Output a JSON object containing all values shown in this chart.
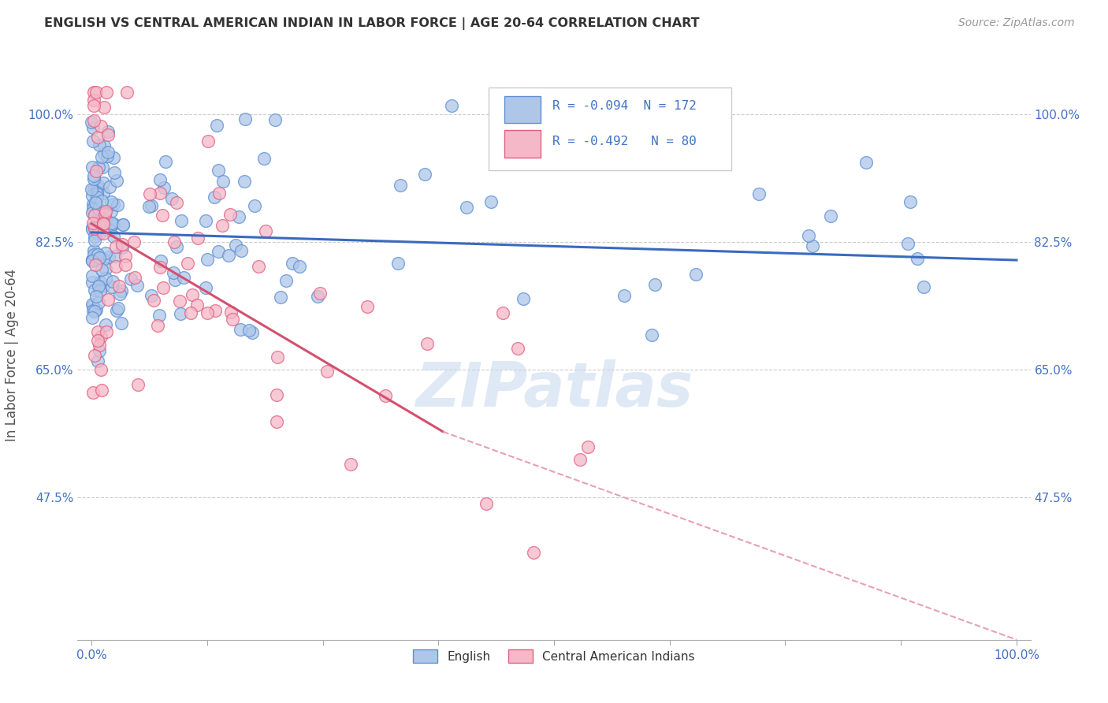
{
  "title": "ENGLISH VS CENTRAL AMERICAN INDIAN IN LABOR FORCE | AGE 20-64 CORRELATION CHART",
  "source": "Source: ZipAtlas.com",
  "ylabel": "In Labor Force | Age 20-64",
  "r_english": -0.094,
  "n_english": 172,
  "r_indian": -0.492,
  "n_indian": 80,
  "x_min": 0.0,
  "x_max": 1.0,
  "y_min": 0.28,
  "y_max": 1.06,
  "yticks": [
    0.475,
    0.65,
    0.825,
    1.0
  ],
  "ytick_labels": [
    "47.5%",
    "65.0%",
    "82.5%",
    "100.0%"
  ],
  "xtick_labels_left": "0.0%",
  "xtick_labels_right": "100.0%",
  "color_english_fill": "#aec6e8",
  "color_english_edge": "#5b8fd4",
  "color_indian_fill": "#f5b8c8",
  "color_indian_edge": "#e06080",
  "line_color_english": "#3a6abf",
  "line_color_indian": "#d45070",
  "line_color_dashed": "#e8a0b0",
  "watermark": "ZIPatlas",
  "background_color": "#ffffff",
  "grid_color": "#cccccc",
  "text_color_axis": "#4472c4",
  "text_color_title": "#333333",
  "text_color_source": "#999999",
  "legend_r_color": "#4472c4",
  "eng_trend_x0": 0.0,
  "eng_trend_y0": 0.838,
  "eng_trend_x1": 1.0,
  "eng_trend_y1": 0.8,
  "ind_trend_x0": 0.0,
  "ind_trend_y0": 0.85,
  "ind_trend_solid_x1": 0.38,
  "ind_trend_solid_y1": 0.565,
  "ind_trend_x1": 1.0,
  "ind_trend_y1": 0.28
}
